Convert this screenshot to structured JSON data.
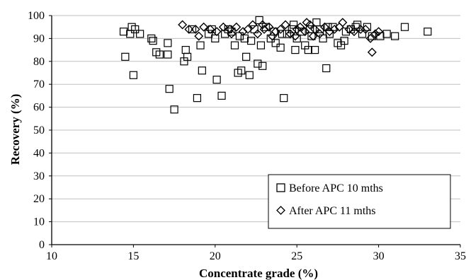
{
  "chart_data": {
    "type": "scatter",
    "xlabel": "Concentrate grade (%)",
    "ylabel": "Recovery (%)",
    "xlim": [
      10,
      35
    ],
    "ylim": [
      0,
      100
    ],
    "x_ticks": [
      10,
      15,
      20,
      25,
      30,
      35
    ],
    "y_ticks": [
      0,
      10,
      20,
      30,
      40,
      50,
      60,
      70,
      80,
      90,
      100
    ],
    "grid": "horizontal",
    "legend_position": "lower-right",
    "series": [
      {
        "name": "Before APC 10 mths",
        "marker": "square",
        "color": "#000000",
        "points": [
          [
            14.4,
            93
          ],
          [
            14.5,
            82
          ],
          [
            14.8,
            92
          ],
          [
            14.9,
            95
          ],
          [
            15.0,
            74
          ],
          [
            15.1,
            94
          ],
          [
            15.4,
            92
          ],
          [
            16.1,
            90
          ],
          [
            16.2,
            89
          ],
          [
            16.4,
            84
          ],
          [
            16.6,
            83
          ],
          [
            17.1,
            88
          ],
          [
            17.1,
            83
          ],
          [
            17.2,
            68
          ],
          [
            17.5,
            59
          ],
          [
            18.1,
            80
          ],
          [
            18.2,
            85
          ],
          [
            18.3,
            82
          ],
          [
            18.6,
            94
          ],
          [
            18.9,
            64
          ],
          [
            19.1,
            87
          ],
          [
            19.2,
            76
          ],
          [
            19.6,
            92
          ],
          [
            20.0,
            90
          ],
          [
            20.1,
            72
          ],
          [
            20.4,
            65
          ],
          [
            20.6,
            92
          ],
          [
            21.0,
            93
          ],
          [
            21.2,
            87
          ],
          [
            21.4,
            75
          ],
          [
            21.6,
            76
          ],
          [
            21.8,
            90
          ],
          [
            21.9,
            82
          ],
          [
            22.1,
            74
          ],
          [
            22.4,
            94
          ],
          [
            22.6,
            79
          ],
          [
            22.8,
            87
          ],
          [
            22.9,
            78
          ],
          [
            23.1,
            95
          ],
          [
            23.4,
            90
          ],
          [
            23.7,
            88
          ],
          [
            24.0,
            86
          ],
          [
            24.2,
            64
          ],
          [
            24.4,
            92
          ],
          [
            24.7,
            94
          ],
          [
            24.9,
            85
          ],
          [
            25.0,
            90
          ],
          [
            25.3,
            93
          ],
          [
            25.5,
            87
          ],
          [
            25.7,
            85
          ],
          [
            25.9,
            91
          ],
          [
            26.1,
            85
          ],
          [
            26.4,
            94
          ],
          [
            26.6,
            90
          ],
          [
            26.8,
            77
          ],
          [
            27.0,
            92
          ],
          [
            27.2,
            95
          ],
          [
            27.5,
            88
          ],
          [
            27.7,
            87
          ],
          [
            28.0,
            93
          ],
          [
            28.3,
            94
          ],
          [
            28.7,
            96
          ],
          [
            29.0,
            92
          ],
          [
            29.3,
            95
          ],
          [
            29.6,
            91
          ],
          [
            30.1,
            91
          ],
          [
            30.5,
            92
          ],
          [
            31.0,
            91
          ],
          [
            31.6,
            95
          ],
          [
            33.0,
            93
          ],
          [
            22.7,
            98
          ],
          [
            21.5,
            91
          ],
          [
            22.2,
            89
          ],
          [
            23.6,
            93
          ],
          [
            24.8,
            96
          ],
          [
            25.8,
            94
          ],
          [
            26.9,
            95
          ],
          [
            27.9,
            89
          ],
          [
            28.6,
            95
          ],
          [
            20.8,
            94
          ],
          [
            19.8,
            94
          ],
          [
            24.1,
            92
          ],
          [
            26.2,
            97
          ]
        ]
      },
      {
        "name": "After APC 11 mths",
        "marker": "diamond",
        "color": "#000000",
        "points": [
          [
            18.0,
            96
          ],
          [
            18.4,
            94
          ],
          [
            18.8,
            94
          ],
          [
            19.0,
            91
          ],
          [
            19.3,
            95
          ],
          [
            19.7,
            94
          ],
          [
            20.1,
            93
          ],
          [
            20.5,
            95
          ],
          [
            20.9,
            94
          ],
          [
            21.3,
            95
          ],
          [
            21.7,
            93
          ],
          [
            22.0,
            94
          ],
          [
            22.3,
            96
          ],
          [
            22.6,
            92
          ],
          [
            23.0,
            94
          ],
          [
            23.3,
            95
          ],
          [
            23.7,
            93
          ],
          [
            24.0,
            94
          ],
          [
            24.3,
            96
          ],
          [
            24.6,
            92
          ],
          [
            25.0,
            94
          ],
          [
            25.2,
            95
          ],
          [
            25.5,
            93
          ],
          [
            25.8,
            96
          ],
          [
            26.1,
            94
          ],
          [
            26.4,
            92
          ],
          [
            26.7,
            95
          ],
          [
            27.0,
            93
          ],
          [
            27.3,
            94
          ],
          [
            27.6,
            95
          ],
          [
            27.8,
            97
          ],
          [
            28.2,
            94
          ],
          [
            28.5,
            93
          ],
          [
            28.9,
            94
          ],
          [
            29.2,
            94
          ],
          [
            29.5,
            90
          ],
          [
            29.6,
            84
          ],
          [
            29.8,
            92
          ],
          [
            30.0,
            93
          ],
          [
            23.5,
            91
          ],
          [
            24.9,
            91
          ],
          [
            26.0,
            91
          ],
          [
            21.0,
            92
          ],
          [
            22.9,
            96
          ],
          [
            25.6,
            97
          ]
        ]
      }
    ]
  }
}
